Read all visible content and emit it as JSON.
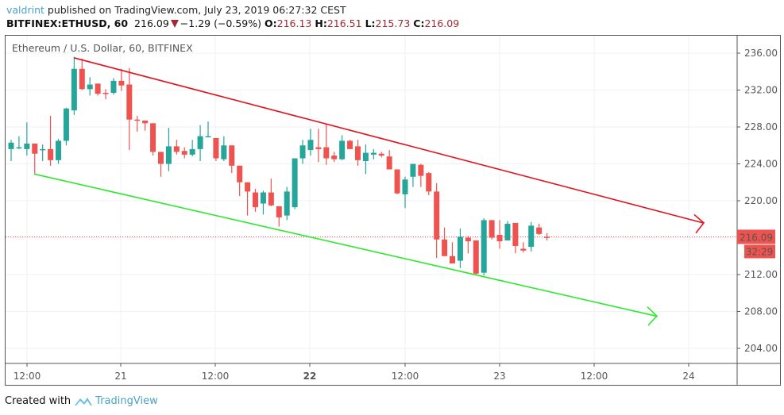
{
  "header": {
    "user": "valdrint",
    "published": " published on TradingView.com, July 23, 2019 06:27:32 CEST",
    "symbol": "BITFINEX:ETHUSD, 60",
    "last": "216.09",
    "change": "−1.29 (−0.59%)",
    "o_label": "O:",
    "o": "216.13",
    "h_label": "H:",
    "h": "216.51",
    "l_label": "L:",
    "l": "215.73",
    "c_label": "C:",
    "c": "216.09"
  },
  "legend": "Ethereum / U.S. Dollar, 60, BITFINEX",
  "price_tag": "216.09",
  "countdown_tag": "32:29",
  "footer": {
    "created": "Created with",
    "brand": "TradingView"
  },
  "colors": {
    "up": "#26a69a",
    "down": "#ef5350",
    "resistance": "#e0141e",
    "support": "#2ee82e",
    "price_line": "#ef5350"
  },
  "chart_data": {
    "type": "candlestick",
    "title": "Ethereum / U.S. Dollar, 60, BITFINEX",
    "xlabel": "",
    "ylabel": "",
    "ylim": [
      202,
      237.5
    ],
    "y_ticks": [
      "236.00",
      "232.00",
      "228.00",
      "224.00",
      "220.00",
      "212.00",
      "208.00",
      "204.00"
    ],
    "x_ticks": [
      "12:00",
      "21",
      "12:00",
      "22",
      "12:00",
      "23",
      "12:00",
      "24"
    ],
    "last_price": 216.09,
    "candles": [
      {
        "o": 225.6,
        "h": 226.6,
        "l": 224.3,
        "c": 226.3
      },
      {
        "o": 225.8,
        "h": 227.0,
        "l": 225.6,
        "c": 225.8
      },
      {
        "o": 225.6,
        "h": 228.5,
        "l": 224.9,
        "c": 226.2
      },
      {
        "o": 226.2,
        "h": 226.2,
        "l": 222.9,
        "c": 225.1
      },
      {
        "o": 225.6,
        "h": 226.1,
        "l": 224.3,
        "c": 225.6
      },
      {
        "o": 225.6,
        "h": 229.2,
        "l": 223.8,
        "c": 224.4
      },
      {
        "o": 224.4,
        "h": 226.7,
        "l": 224.0,
        "c": 226.5
      },
      {
        "o": 226.5,
        "h": 230.1,
        "l": 226.0,
        "c": 230.0
      },
      {
        "o": 229.8,
        "h": 235.6,
        "l": 229.3,
        "c": 234.3
      },
      {
        "o": 234.3,
        "h": 235.4,
        "l": 232.0,
        "c": 232.1
      },
      {
        "o": 232.1,
        "h": 233.4,
        "l": 231.4,
        "c": 232.6
      },
      {
        "o": 232.7,
        "h": 232.7,
        "l": 231.4,
        "c": 231.6
      },
      {
        "o": 231.7,
        "h": 232.1,
        "l": 231.0,
        "c": 231.6
      },
      {
        "o": 231.7,
        "h": 233.3,
        "l": 231.5,
        "c": 233.0
      },
      {
        "o": 233.0,
        "h": 234.3,
        "l": 231.9,
        "c": 232.5
      },
      {
        "o": 232.6,
        "h": 234.4,
        "l": 225.5,
        "c": 228.8
      },
      {
        "o": 228.8,
        "h": 229.2,
        "l": 227.5,
        "c": 228.7
      },
      {
        "o": 228.7,
        "h": 228.7,
        "l": 227.6,
        "c": 228.4
      },
      {
        "o": 228.4,
        "h": 228.4,
        "l": 224.9,
        "c": 225.3
      },
      {
        "o": 225.3,
        "h": 225.3,
        "l": 222.6,
        "c": 224.0
      },
      {
        "o": 224.0,
        "h": 227.9,
        "l": 223.2,
        "c": 225.9
      },
      {
        "o": 225.9,
        "h": 226.6,
        "l": 225.0,
        "c": 225.3
      },
      {
        "o": 225.4,
        "h": 225.8,
        "l": 224.6,
        "c": 225.0
      },
      {
        "o": 225.0,
        "h": 226.6,
        "l": 224.8,
        "c": 225.6
      },
      {
        "o": 225.6,
        "h": 228.2,
        "l": 224.3,
        "c": 227.0
      },
      {
        "o": 227.0,
        "h": 228.6,
        "l": 226.9,
        "c": 227.0
      },
      {
        "o": 226.8,
        "h": 226.8,
        "l": 224.3,
        "c": 224.6
      },
      {
        "o": 224.5,
        "h": 227.0,
        "l": 224.3,
        "c": 226.0
      },
      {
        "o": 226.0,
        "h": 226.0,
        "l": 223.0,
        "c": 223.8
      },
      {
        "o": 223.8,
        "h": 223.8,
        "l": 220.5,
        "c": 222.0
      },
      {
        "o": 222.0,
        "h": 222.0,
        "l": 218.4,
        "c": 221.0
      },
      {
        "o": 220.9,
        "h": 221.3,
        "l": 218.8,
        "c": 219.3
      },
      {
        "o": 219.7,
        "h": 221.1,
        "l": 218.5,
        "c": 220.9
      },
      {
        "o": 220.9,
        "h": 222.4,
        "l": 219.4,
        "c": 219.5
      },
      {
        "o": 219.4,
        "h": 219.4,
        "l": 217.2,
        "c": 218.2
      },
      {
        "o": 218.4,
        "h": 221.5,
        "l": 217.9,
        "c": 221.0
      },
      {
        "o": 219.3,
        "h": 224.6,
        "l": 219.1,
        "c": 224.6
      },
      {
        "o": 224.6,
        "h": 226.6,
        "l": 224.0,
        "c": 226.0
      },
      {
        "o": 225.5,
        "h": 227.8,
        "l": 224.9,
        "c": 226.6
      },
      {
        "o": 225.8,
        "h": 227.8,
        "l": 224.2,
        "c": 225.6
      },
      {
        "o": 225.8,
        "h": 228.3,
        "l": 223.9,
        "c": 224.6
      },
      {
        "o": 224.9,
        "h": 225.3,
        "l": 224.2,
        "c": 224.5
      },
      {
        "o": 224.5,
        "h": 227.1,
        "l": 224.4,
        "c": 226.5
      },
      {
        "o": 226.5,
        "h": 226.6,
        "l": 225.7,
        "c": 225.6
      },
      {
        "o": 225.9,
        "h": 226.6,
        "l": 223.8,
        "c": 224.4
      },
      {
        "o": 224.3,
        "h": 226.1,
        "l": 222.9,
        "c": 225.2
      },
      {
        "o": 225.0,
        "h": 225.6,
        "l": 224.5,
        "c": 225.2
      },
      {
        "o": 225.1,
        "h": 225.3,
        "l": 224.7,
        "c": 224.9
      },
      {
        "o": 224.8,
        "h": 225.5,
        "l": 223.4,
        "c": 223.4
      },
      {
        "o": 223.4,
        "h": 223.4,
        "l": 220.7,
        "c": 220.8
      },
      {
        "o": 220.7,
        "h": 222.6,
        "l": 219.2,
        "c": 222.3
      },
      {
        "o": 222.6,
        "h": 224.0,
        "l": 221.5,
        "c": 224.0
      },
      {
        "o": 223.9,
        "h": 224.0,
        "l": 221.5,
        "c": 222.7
      },
      {
        "o": 223.0,
        "h": 223.1,
        "l": 220.6,
        "c": 221.0
      },
      {
        "o": 221.0,
        "h": 221.9,
        "l": 213.8,
        "c": 215.8
      },
      {
        "o": 215.8,
        "h": 217.1,
        "l": 214.1,
        "c": 214.0
      },
      {
        "o": 214.0,
        "h": 215.5,
        "l": 213.3,
        "c": 213.2
      },
      {
        "o": 213.5,
        "h": 217.0,
        "l": 212.7,
        "c": 216.1
      },
      {
        "o": 216.0,
        "h": 216.2,
        "l": 214.3,
        "c": 215.6
      },
      {
        "o": 215.7,
        "h": 215.7,
        "l": 212.0,
        "c": 212.1
      },
      {
        "o": 212.2,
        "h": 218.1,
        "l": 211.9,
        "c": 217.9
      },
      {
        "o": 217.9,
        "h": 217.9,
        "l": 215.8,
        "c": 216.0
      },
      {
        "o": 216.3,
        "h": 217.9,
        "l": 214.8,
        "c": 215.6
      },
      {
        "o": 215.7,
        "h": 217.8,
        "l": 215.7,
        "c": 217.5
      },
      {
        "o": 217.6,
        "h": 217.6,
        "l": 214.3,
        "c": 215.1
      },
      {
        "o": 214.8,
        "h": 215.5,
        "l": 214.4,
        "c": 214.6
      },
      {
        "o": 215.0,
        "h": 217.7,
        "l": 214.5,
        "c": 217.3
      },
      {
        "o": 217.1,
        "h": 217.5,
        "l": 216.3,
        "c": 216.4
      },
      {
        "o": 216.1,
        "h": 216.5,
        "l": 215.7,
        "c": 216.09
      }
    ],
    "annotations": [
      {
        "type": "trendline",
        "name": "resistance",
        "color": "#e0141e",
        "from": {
          "candle": 8,
          "price": 235.5
        },
        "to": "arrow right ~217.6"
      },
      {
        "type": "trendline",
        "name": "support",
        "color": "#2ee82e",
        "from": {
          "candle": 3,
          "price": 222.9
        },
        "to": "arrow right ~207.5"
      }
    ]
  }
}
